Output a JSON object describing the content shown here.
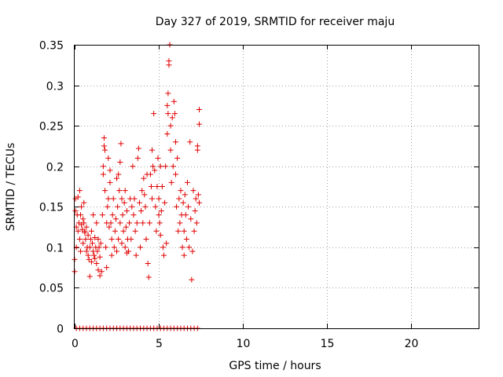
{
  "chart_data": {
    "type": "scatter",
    "title": "Day 327 of 2019, SRMTID for receiver maju",
    "xlabel": "GPS time / hours",
    "ylabel": "SRMTID / TECUs",
    "xlim": [
      0,
      24
    ],
    "ylim": [
      0,
      0.35
    ],
    "xticks": [
      0,
      5,
      10,
      15,
      20
    ],
    "xtick_labels": [
      "0",
      "5",
      "10",
      "15",
      "20"
    ],
    "yticks": [
      0,
      0.05,
      0.1,
      0.15,
      0.2,
      0.25,
      0.3,
      0.35
    ],
    "ytick_labels": [
      "0",
      "0.05",
      "0.1",
      "0.15",
      "0.2",
      "0.25",
      "0.3",
      "0.35"
    ],
    "grid": true,
    "marker": "+",
    "color": "#e00000",
    "series": [
      {
        "points": [
          [
            0.0,
            0.085
          ],
          [
            0.0,
            0.07
          ],
          [
            0.05,
            0.16
          ],
          [
            0.05,
            0.145
          ],
          [
            0.1,
            0.1
          ],
          [
            0.1,
            0.125
          ],
          [
            0.15,
            0.14
          ],
          [
            0.2,
            0.12
          ],
          [
            0.2,
            0.162
          ],
          [
            0.25,
            0.13
          ],
          [
            0.3,
            0.17
          ],
          [
            0.3,
            0.11
          ],
          [
            0.35,
            0.14
          ],
          [
            0.35,
            0.095
          ],
          [
            0.4,
            0.15
          ],
          [
            0.4,
            0.128
          ],
          [
            0.45,
            0.122
          ],
          [
            0.5,
            0.135
          ],
          [
            0.5,
            0.105
          ],
          [
            0.55,
            0.13
          ],
          [
            0.55,
            0.155
          ],
          [
            0.6,
            0.12
          ],
          [
            0.6,
            0.118
          ],
          [
            0.65,
            0.11
          ],
          [
            0.7,
            0.125
          ],
          [
            0.7,
            0.095
          ],
          [
            0.75,
            0.1
          ],
          [
            0.8,
            0.09
          ],
          [
            0.8,
            0.115
          ],
          [
            0.85,
            0.085
          ],
          [
            0.9,
            0.1
          ],
          [
            0.9,
            0.064
          ],
          [
            0.95,
            0.11
          ],
          [
            1.0,
            0.12
          ],
          [
            1.0,
            0.082
          ],
          [
            1.05,
            0.105
          ],
          [
            1.1,
            0.14
          ],
          [
            1.1,
            0.095
          ],
          [
            1.15,
            0.09
          ],
          [
            1.2,
            0.112
          ],
          [
            1.2,
            0.086
          ],
          [
            1.25,
            0.1
          ],
          [
            1.3,
            0.13
          ],
          [
            1.3,
            0.08
          ],
          [
            1.35,
            0.095
          ],
          [
            1.4,
            0.11
          ],
          [
            1.4,
            0.072
          ],
          [
            1.45,
            0.1
          ],
          [
            1.5,
            0.088
          ],
          [
            1.5,
            0.065
          ],
          [
            1.55,
            0.105
          ],
          [
            1.6,
            0.07
          ],
          [
            1.65,
            0.14
          ],
          [
            1.7,
            0.2
          ],
          [
            1.7,
            0.19
          ],
          [
            1.75,
            0.225
          ],
          [
            1.75,
            0.235
          ],
          [
            1.8,
            0.22
          ],
          [
            1.8,
            0.17
          ],
          [
            1.85,
            0.1
          ],
          [
            1.9,
            0.13
          ],
          [
            1.9,
            0.075
          ],
          [
            1.95,
            0.15
          ],
          [
            2.0,
            0.21
          ],
          [
            2.0,
            0.16
          ],
          [
            2.05,
            0.125
          ],
          [
            2.1,
            0.18
          ],
          [
            2.1,
            0.195
          ],
          [
            2.15,
            0.13
          ],
          [
            2.2,
            0.11
          ],
          [
            2.2,
            0.09
          ],
          [
            2.25,
            0.14
          ],
          [
            2.3,
            0.16
          ],
          [
            2.35,
            0.1
          ],
          [
            2.4,
            0.12
          ],
          [
            2.45,
            0.135
          ],
          [
            2.5,
            0.095
          ],
          [
            2.5,
            0.185
          ],
          [
            2.55,
            0.15
          ],
          [
            2.6,
            0.19
          ],
          [
            2.6,
            0.11
          ],
          [
            2.65,
            0.17
          ],
          [
            2.7,
            0.205
          ],
          [
            2.7,
            0.13
          ],
          [
            2.75,
            0.228
          ],
          [
            2.8,
            0.16
          ],
          [
            2.8,
            0.105
          ],
          [
            2.85,
            0.14
          ],
          [
            2.9,
            0.12
          ],
          [
            2.95,
            0.155
          ],
          [
            3.0,
            0.17
          ],
          [
            3.0,
            0.1
          ],
          [
            3.05,
            0.125
          ],
          [
            3.1,
            0.145
          ],
          [
            3.1,
            0.093
          ],
          [
            3.15,
            0.11
          ],
          [
            3.2,
            0.095
          ],
          [
            3.25,
            0.13
          ],
          [
            3.3,
            0.16
          ],
          [
            3.35,
            0.11
          ],
          [
            3.4,
            0.15
          ],
          [
            3.45,
            0.2
          ],
          [
            3.5,
            0.14
          ],
          [
            3.55,
            0.16
          ],
          [
            3.6,
            0.12
          ],
          [
            3.65,
            0.09
          ],
          [
            3.7,
            0.13
          ],
          [
            3.75,
            0.21
          ],
          [
            3.8,
            0.222
          ],
          [
            3.85,
            0.155
          ],
          [
            3.9,
            0.1
          ],
          [
            3.95,
            0.145
          ],
          [
            4.0,
            0.17
          ],
          [
            4.05,
            0.13
          ],
          [
            4.1,
            0.185
          ],
          [
            4.15,
            0.165
          ],
          [
            4.2,
            0.15
          ],
          [
            4.25,
            0.11
          ],
          [
            4.3,
            0.19
          ],
          [
            4.35,
            0.08
          ],
          [
            4.4,
            0.063
          ],
          [
            4.45,
            0.13
          ],
          [
            4.5,
            0.19
          ],
          [
            4.55,
            0.175
          ],
          [
            4.6,
            0.22
          ],
          [
            4.6,
            0.16
          ],
          [
            4.65,
            0.2
          ],
          [
            4.7,
            0.265
          ],
          [
            4.75,
            0.195
          ],
          [
            4.8,
            0.15
          ],
          [
            4.85,
            0.12
          ],
          [
            4.9,
            0.175
          ],
          [
            4.95,
            0.21
          ],
          [
            5.0,
            0.14
          ],
          [
            5.0,
            0.16
          ],
          [
            5.05,
            0.13
          ],
          [
            5.1,
            0.2
          ],
          [
            5.1,
            0.115
          ],
          [
            5.15,
            0.145
          ],
          [
            5.2,
            0.175
          ],
          [
            5.25,
            0.1
          ],
          [
            5.3,
            0.09
          ],
          [
            5.35,
            0.155
          ],
          [
            5.4,
            0.2
          ],
          [
            5.45,
            0.105
          ],
          [
            5.5,
            0.24
          ],
          [
            5.5,
            0.275
          ],
          [
            5.55,
            0.29
          ],
          [
            5.55,
            0.265
          ],
          [
            5.6,
            0.33
          ],
          [
            5.6,
            0.325
          ],
          [
            5.65,
            0.35
          ],
          [
            5.7,
            0.22
          ],
          [
            5.7,
            0.25
          ],
          [
            5.75,
            0.18
          ],
          [
            5.8,
            0.26
          ],
          [
            5.85,
            0.2
          ],
          [
            5.9,
            0.28
          ],
          [
            5.95,
            0.265
          ],
          [
            6.0,
            0.23
          ],
          [
            6.0,
            0.19
          ],
          [
            6.05,
            0.15
          ],
          [
            6.1,
            0.21
          ],
          [
            6.15,
            0.12
          ],
          [
            6.2,
            0.16
          ],
          [
            6.25,
            0.13
          ],
          [
            6.3,
            0.17
          ],
          [
            6.35,
            0.14
          ],
          [
            6.4,
            0.1
          ],
          [
            6.45,
            0.155
          ],
          [
            6.5,
            0.12
          ],
          [
            6.5,
            0.09
          ],
          [
            6.55,
            0.165
          ],
          [
            6.6,
            0.14
          ],
          [
            6.65,
            0.11
          ],
          [
            6.7,
            0.18
          ],
          [
            6.75,
            0.15
          ],
          [
            6.8,
            0.1
          ],
          [
            6.85,
            0.23
          ],
          [
            6.9,
            0.135
          ],
          [
            6.95,
            0.06
          ],
          [
            7.0,
            0.095
          ],
          [
            7.05,
            0.17
          ],
          [
            7.1,
            0.12
          ],
          [
            7.15,
            0.145
          ],
          [
            7.2,
            0.16
          ],
          [
            7.25,
            0.13
          ],
          [
            7.3,
            0.22
          ],
          [
            7.3,
            0.225
          ],
          [
            7.35,
            0.165
          ],
          [
            7.4,
            0.252
          ],
          [
            7.4,
            0.27
          ],
          [
            7.4,
            0.155
          ]
        ]
      },
      {
        "points": [
          [
            0.1,
            0.0
          ],
          [
            0.3,
            0.0
          ],
          [
            0.5,
            0.0
          ],
          [
            0.7,
            0.0
          ],
          [
            0.9,
            0.0
          ],
          [
            1.1,
            0.0
          ],
          [
            1.3,
            0.0
          ],
          [
            1.5,
            0.0
          ],
          [
            1.7,
            0.0
          ],
          [
            1.9,
            0.0
          ],
          [
            2.1,
            0.0
          ],
          [
            2.3,
            0.0
          ],
          [
            2.5,
            0.0
          ],
          [
            2.7,
            0.0
          ],
          [
            2.9,
            0.0
          ],
          [
            3.1,
            0.0
          ],
          [
            3.3,
            0.0
          ],
          [
            3.5,
            0.0
          ],
          [
            3.7,
            0.0
          ],
          [
            3.9,
            0.0
          ],
          [
            4.1,
            0.0
          ],
          [
            4.3,
            0.0
          ],
          [
            4.5,
            0.0
          ],
          [
            4.7,
            0.0
          ],
          [
            4.9,
            0.0
          ],
          [
            5.1,
            0.0
          ],
          [
            5.3,
            0.0
          ],
          [
            5.5,
            0.0
          ],
          [
            5.7,
            0.0
          ],
          [
            5.9,
            0.0
          ],
          [
            6.1,
            0.0
          ],
          [
            6.3,
            0.0
          ],
          [
            6.5,
            0.0
          ],
          [
            6.7,
            0.0
          ],
          [
            6.9,
            0.0
          ],
          [
            7.1,
            0.0
          ],
          [
            7.3,
            0.0
          ]
        ]
      }
    ]
  }
}
